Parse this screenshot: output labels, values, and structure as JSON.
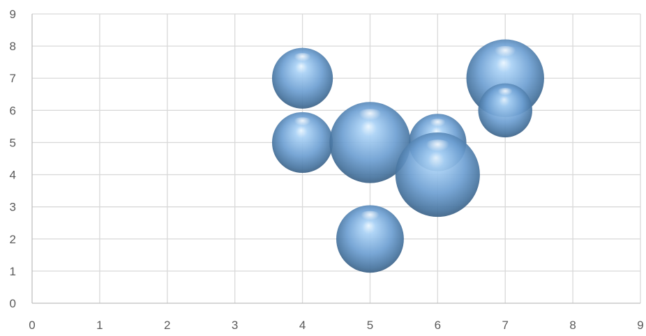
{
  "chart_data": {
    "type": "bubble",
    "title": "",
    "xlabel": "",
    "ylabel": "",
    "xlim": [
      0,
      9
    ],
    "ylim": [
      0,
      9
    ],
    "x_ticks": [
      "0",
      "1",
      "2",
      "3",
      "4",
      "5",
      "6",
      "7",
      "8",
      "9"
    ],
    "y_ticks": [
      "0",
      "1",
      "2",
      "3",
      "4",
      "5",
      "6",
      "7",
      "8",
      "9"
    ],
    "grid": true,
    "legend": "none",
    "bubble_color": "#7aa6d6",
    "series": [
      {
        "points": [
          {
            "x": 4,
            "y": 7,
            "size": 0.9
          },
          {
            "x": 4,
            "y": 5,
            "size": 0.9
          },
          {
            "x": 5,
            "y": 5,
            "size": 1.2
          },
          {
            "x": 6,
            "y": 5,
            "size": 0.85
          },
          {
            "x": 6,
            "y": 4,
            "size": 1.25
          },
          {
            "x": 5,
            "y": 2,
            "size": 1.0
          },
          {
            "x": 7,
            "y": 7,
            "size": 1.15
          },
          {
            "x": 7,
            "y": 6,
            "size": 0.8
          }
        ]
      }
    ]
  }
}
